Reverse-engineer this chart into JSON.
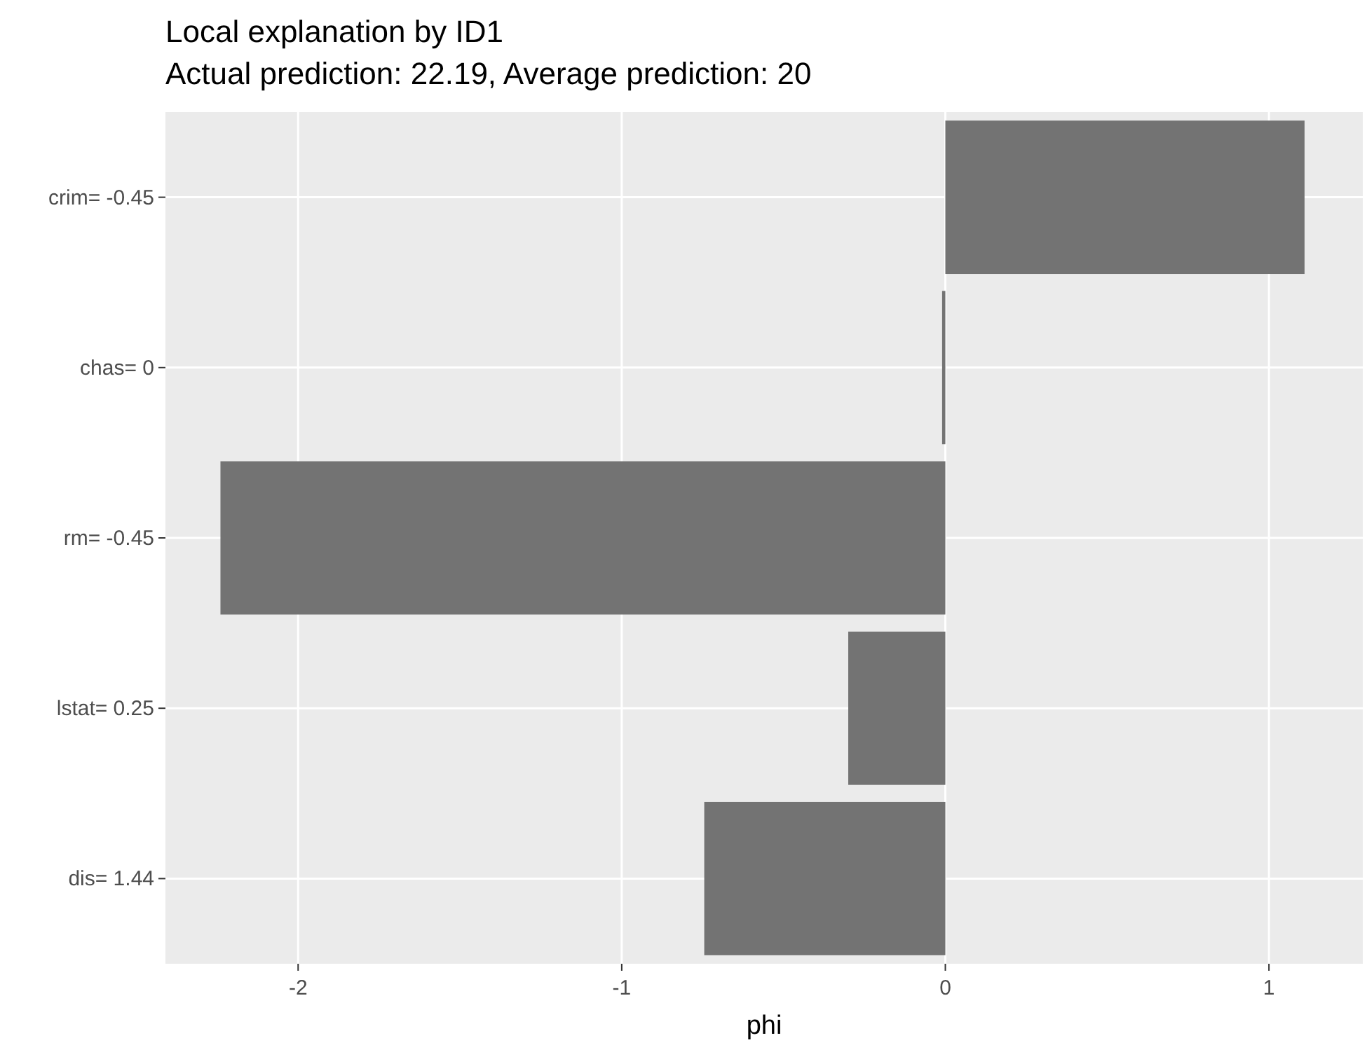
{
  "chart_data": {
    "type": "bar",
    "orientation": "horizontal",
    "title": "Local explanation by ID1",
    "subtitle": "Actual prediction: 22.19, Average prediction: 20",
    "xlabel": "phi",
    "categories": [
      "crim= -0.45",
      "chas= 0",
      "rm= -0.45",
      "lstat= 0.25",
      "dis= 1.44"
    ],
    "values": [
      1.11,
      -0.01,
      -2.24,
      -0.3,
      -0.745
    ],
    "color": "#737373",
    "xlim": [
      -2.41,
      1.29
    ],
    "xticks": [
      -2,
      -1,
      0,
      1
    ],
    "grid": true
  }
}
